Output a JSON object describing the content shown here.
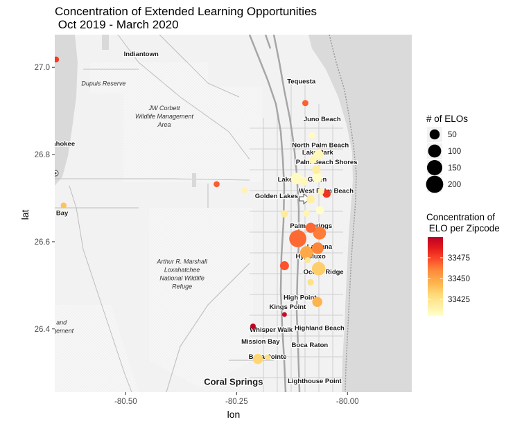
{
  "chart_data": {
    "type": "scatter",
    "title_line1": "Concentration of Extended Learning Opportunities",
    "title_line2": " Oct 2019 - March 2020",
    "xlabel": "lon",
    "ylabel": "lat",
    "xlim": [
      -80.66,
      -79.855
    ],
    "ylim": [
      26.255,
      27.075
    ],
    "x_ticks": [
      -80.5,
      -80.25,
      -80.0
    ],
    "x_tick_labels": [
      "-80.50",
      "-80.25",
      "-80.00"
    ],
    "y_ticks": [
      26.4,
      26.6,
      26.8,
      27.0
    ],
    "y_tick_labels": [
      "26.4",
      "26.6",
      "26.8",
      "27.0"
    ],
    "grid": false,
    "basemap": "terrain-lines",
    "size_legend": {
      "title": "# of ELOs",
      "values": [
        50,
        100,
        150,
        200
      ],
      "labels": [
        "50",
        "100",
        "150",
        "200"
      ]
    },
    "color_legend": {
      "title_line1": "Concentration of",
      "title_line2": " ELO per Zipcode",
      "min": 33405,
      "max": 33500,
      "ticks": [
        33425,
        33450,
        33475
      ],
      "tick_labels": [
        "33425",
        "33450",
        "33475"
      ],
      "colors": [
        "#ffffcc",
        "#ffeda0",
        "#fed976",
        "#feb24c",
        "#fd8d3c",
        "#fc4e2a",
        "#e31a1c",
        "#bd0026"
      ]
    },
    "points": [
      {
        "lon": -80.657,
        "lat": 27.018,
        "count": 8,
        "zip": 33478
      },
      {
        "lon": -80.095,
        "lat": 26.918,
        "count": 10,
        "zip": 33469
      },
      {
        "lon": -80.08,
        "lat": 26.844,
        "count": 14,
        "zip": 33408
      },
      {
        "lon": -80.065,
        "lat": 26.8,
        "count": 45,
        "zip": 33410
      },
      {
        "lon": -80.078,
        "lat": 26.787,
        "count": 22,
        "zip": 33412
      },
      {
        "lon": -80.07,
        "lat": 26.765,
        "count": 30,
        "zip": 33418
      },
      {
        "lon": -80.115,
        "lat": 26.745,
        "count": 70,
        "zip": 33409
      },
      {
        "lon": -80.068,
        "lat": 26.747,
        "count": 45,
        "zip": 33407
      },
      {
        "lon": -80.098,
        "lat": 26.738,
        "count": 25,
        "zip": 33411
      },
      {
        "lon": -80.295,
        "lat": 26.732,
        "count": 9,
        "zip": 33470
      },
      {
        "lon": -80.232,
        "lat": 26.718,
        "count": 8,
        "zip": 33414
      },
      {
        "lon": -80.06,
        "lat": 26.715,
        "count": 12,
        "zip": 33415
      },
      {
        "lon": -80.047,
        "lat": 26.71,
        "count": 25,
        "zip": 33480
      },
      {
        "lon": -80.083,
        "lat": 26.698,
        "count": 30,
        "zip": 33417
      },
      {
        "lon": -80.64,
        "lat": 26.683,
        "count": 8,
        "zip": 33440
      },
      {
        "lon": -80.062,
        "lat": 26.672,
        "count": 25,
        "zip": 33406
      },
      {
        "lon": -80.092,
        "lat": 26.665,
        "count": 15,
        "zip": 33413
      },
      {
        "lon": -80.142,
        "lat": 26.664,
        "count": 18,
        "zip": 33420
      },
      {
        "lon": -80.083,
        "lat": 26.632,
        "count": 50,
        "zip": 33467
      },
      {
        "lon": -80.063,
        "lat": 26.62,
        "count": 100,
        "zip": 33463
      },
      {
        "lon": -80.112,
        "lat": 26.607,
        "count": 200,
        "zip": 33467
      },
      {
        "lon": -80.067,
        "lat": 26.585,
        "count": 75,
        "zip": 33461
      },
      {
        "lon": -80.092,
        "lat": 26.575,
        "count": 100,
        "zip": 33449
      },
      {
        "lon": -80.09,
        "lat": 26.558,
        "count": 8,
        "zip": 33424
      },
      {
        "lon": -80.142,
        "lat": 26.545,
        "count": 35,
        "zip": 33472
      },
      {
        "lon": -80.065,
        "lat": 26.538,
        "count": 110,
        "zip": 33436
      },
      {
        "lon": -80.083,
        "lat": 26.507,
        "count": 12,
        "zip": 33426
      },
      {
        "lon": -80.068,
        "lat": 26.462,
        "count": 50,
        "zip": 33445
      },
      {
        "lon": -80.142,
        "lat": 26.433,
        "count": 3,
        "zip": 33495
      },
      {
        "lon": -80.213,
        "lat": 26.406,
        "count": 6,
        "zip": 33499
      },
      {
        "lon": -80.202,
        "lat": 26.331,
        "count": 50,
        "zip": 33433
      },
      {
        "lon": -80.18,
        "lat": 26.335,
        "count": 8,
        "zip": 33428
      }
    ],
    "place_labels": [
      {
        "text": "Indiantown",
        "lon": -80.465,
        "lat": 27.026
      },
      {
        "text": "Tequesta",
        "lon": -80.104,
        "lat": 26.963
      },
      {
        "text": "Juno Beach",
        "lon": -80.057,
        "lat": 26.876
      },
      {
        "text": "Pahokee",
        "lon": -80.645,
        "lat": 26.82
      },
      {
        "text": "North Palm Beach",
        "lon": -80.061,
        "lat": 26.817
      },
      {
        "text": "Lake Park",
        "lon": -80.067,
        "lat": 26.8
      },
      {
        "text": "Palm Beach Shores",
        "lon": -80.047,
        "lat": 26.778
      },
      {
        "text": "Lakeside Green",
        "lon": -80.102,
        "lat": 26.738
      },
      {
        "text": "West Palm Beach",
        "lon": -80.048,
        "lat": 26.712
      },
      {
        "text": "Golden Lakes",
        "lon": -80.16,
        "lat": 26.7
      },
      {
        "text": "h Bay",
        "lon": -80.65,
        "lat": 26.661
      },
      {
        "text": "Palm Springs",
        "lon": -80.082,
        "lat": 26.632
      },
      {
        "text": "Lantana",
        "lon": -80.063,
        "lat": 26.584
      },
      {
        "text": "Hypoluxo",
        "lon": -80.083,
        "lat": 26.562
      },
      {
        "text": "Ocean Ridge",
        "lon": -80.054,
        "lat": 26.526
      },
      {
        "text": "High Point",
        "lon": -80.107,
        "lat": 26.467
      },
      {
        "text": "Kings Point",
        "lon": -80.135,
        "lat": 26.446
      },
      {
        "text": "Highland Beach",
        "lon": -80.063,
        "lat": 26.397
      },
      {
        "text": "Whisper Walk",
        "lon": -80.172,
        "lat": 26.393
      },
      {
        "text": "Mission Bay",
        "lon": -80.196,
        "lat": 26.366
      },
      {
        "text": "Boca Raton",
        "lon": -80.085,
        "lat": 26.358
      },
      {
        "text": "Boca Pointe",
        "lon": -80.18,
        "lat": 26.331
      },
      {
        "text": "Lighthouse Point",
        "lon": -80.074,
        "lat": 26.276
      }
    ],
    "big_labels": [
      {
        "text": "Coral Springs",
        "lon": -80.257,
        "lat": 26.272
      }
    ],
    "reserve_labels": [
      {
        "lines": [
          "Dupuis Reserve"
        ],
        "lon": -80.55,
        "lat": 26.958
      },
      {
        "lines": [
          "JW Corbett",
          "Wildlife Management",
          "Area"
        ],
        "lon": -80.413,
        "lat": 26.902
      },
      {
        "lines": [
          "Arthur R. Marshall",
          "Loxahatchee",
          "National Wildlife",
          "Refuge"
        ],
        "lon": -80.373,
        "lat": 26.55
      },
      {
        "lines": [
          "and",
          "agement"
        ],
        "lon": -80.645,
        "lat": 26.41
      }
    ]
  }
}
